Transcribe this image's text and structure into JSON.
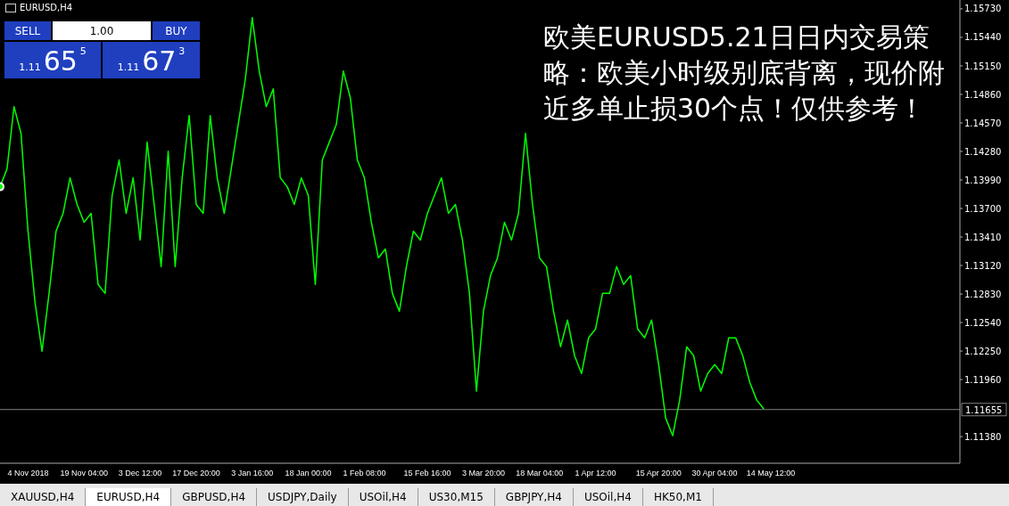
{
  "chart_data": {
    "type": "line",
    "title": "EURUSD,H4",
    "subtitle": "欧美EURUSD5.21日日内交易策略：欧美小时级别底背离，现价附近多单止损30个点！仅供参考！",
    "categories": [
      null,
      null,
      null,
      null,
      "4 Nov 2018",
      null,
      null,
      null,
      null,
      null,
      null,
      null,
      "19 Nov 04:00",
      null,
      null,
      null,
      null,
      null,
      null,
      null,
      "3 Dec 12:00",
      null,
      null,
      null,
      null,
      null,
      null,
      null,
      "17 Dec 20:00",
      null,
      null,
      null,
      null,
      null,
      null,
      null,
      "3 Jan 16:00",
      null,
      null,
      null,
      null,
      null,
      null,
      null,
      "18 Jan 00:00",
      null,
      null,
      null,
      null,
      null,
      null,
      null,
      "1 Feb 08:00",
      null,
      null,
      null,
      null,
      null,
      null,
      null,
      null,
      "15 Feb 16:00",
      null,
      null,
      null,
      null,
      null,
      null,
      null,
      "3 Mar 20:00",
      null,
      null,
      null,
      null,
      null,
      null,
      null,
      "18 Mar 04:00",
      null,
      null,
      null,
      null,
      null,
      null,
      null,
      "1 Apr 12:00",
      null,
      null,
      null,
      null,
      null,
      null,
      null,
      null,
      "15 Apr 20:00",
      null,
      null,
      null,
      null,
      null,
      null,
      null,
      "30 Apr 04:00",
      null,
      null,
      null,
      null,
      null,
      null,
      null,
      "14 May 12:00",
      null,
      null,
      null,
      null,
      null,
      null,
      null,
      null,
      null,
      null,
      null,
      null,
      null,
      null,
      null,
      null,
      null,
      null,
      null,
      null,
      null,
      null,
      null,
      null,
      null,
      null,
      null
    ],
    "series": [
      {
        "color": "#00ff00",
        "values": [
          1.13921,
          1.14102,
          1.14735,
          1.14464,
          1.13469,
          1.12746,
          1.12248,
          1.12836,
          1.13469,
          1.1365,
          1.14012,
          1.13741,
          1.1356,
          1.1365,
          1.12927,
          1.12836,
          1.13831,
          1.14193,
          1.1365,
          1.14012,
          1.13379,
          1.14374,
          1.13741,
          1.13108,
          1.14283,
          1.13108,
          1.14012,
          1.14645,
          1.13741,
          1.1365,
          1.14645,
          1.14012,
          1.1365,
          1.14102,
          1.14554,
          1.15007,
          1.1564,
          1.15097,
          1.14735,
          1.14916,
          1.14012,
          1.13921,
          1.13741,
          1.14012,
          1.13831,
          1.12927,
          1.14193,
          1.14374,
          1.14554,
          1.15097,
          1.14826,
          1.14193,
          1.14012,
          1.1356,
          1.13198,
          1.13288,
          1.12836,
          1.12655,
          1.13108,
          1.13469,
          1.13379,
          1.1365,
          1.13831,
          1.14012,
          1.1365,
          1.13741,
          1.13379,
          1.12836,
          1.11842,
          1.12655,
          1.13017,
          1.13198,
          1.1356,
          1.13379,
          1.1365,
          1.14464,
          1.13741,
          1.13198,
          1.13108,
          1.12655,
          1.12294,
          1.12565,
          1.12203,
          1.12022,
          1.12384,
          1.12475,
          1.12836,
          1.12836,
          1.13108,
          1.12927,
          1.13017,
          1.12475,
          1.12384,
          1.12565,
          1.12113,
          1.1157,
          1.11389,
          1.11751,
          1.12294,
          1.12203,
          1.11842,
          1.12022,
          1.12113,
          1.12022,
          1.12384,
          1.12384,
          1.12203,
          1.11932,
          1.11751,
          1.11661,
          null,
          null,
          null,
          null,
          null,
          null,
          null,
          null,
          null,
          null,
          null,
          null,
          null,
          null,
          null,
          null,
          null,
          null,
          null,
          null,
          null,
          null,
          null,
          null,
          null,
          null,
          null,
          null
        ]
      }
    ],
    "ylim": [
      1.11109,
      1.1582
    ],
    "yticks": [
      {
        "value": 1.1138,
        "label": "1.11380"
      },
      {
        "value": 1.1196,
        "label": "1.11960"
      },
      {
        "value": 1.1225,
        "label": "1.12250"
      },
      {
        "value": 1.1254,
        "label": "1.12540"
      },
      {
        "value": 1.1283,
        "label": "1.12830"
      },
      {
        "value": 1.1312,
        "label": "1.13120"
      },
      {
        "value": 1.1341,
        "label": "1.13410"
      },
      {
        "value": 1.137,
        "label": "1.13700"
      },
      {
        "value": 1.1399,
        "label": "1.13990"
      },
      {
        "value": 1.1428,
        "label": "1.14280"
      },
      {
        "value": 1.1457,
        "label": "1.14570"
      },
      {
        "value": 1.1486,
        "label": "1.14860"
      },
      {
        "value": 1.1515,
        "label": "1.15150"
      },
      {
        "value": 1.1544,
        "label": "1.15440"
      },
      {
        "value": 1.1573,
        "label": "1.15730"
      }
    ],
    "ref_lines": [
      {
        "axis": "y",
        "value": 1.11655,
        "label": "1.11655",
        "color": "#808080"
      }
    ],
    "annotations": [
      "SELL",
      "1.00",
      "BUY",
      "1.11",
      "65",
      "5",
      "1.11",
      "67",
      "3",
      "XAUUSD,H4",
      "EURUSD,H4",
      "GBPUSD,H4",
      "USDJPY,Daily",
      "USOil,H4",
      "US30,M15",
      "GBPJPY,H4",
      "USOil,H4",
      "HK50,M1"
    ],
    "marker": "none",
    "line_style": "solid"
  }
}
